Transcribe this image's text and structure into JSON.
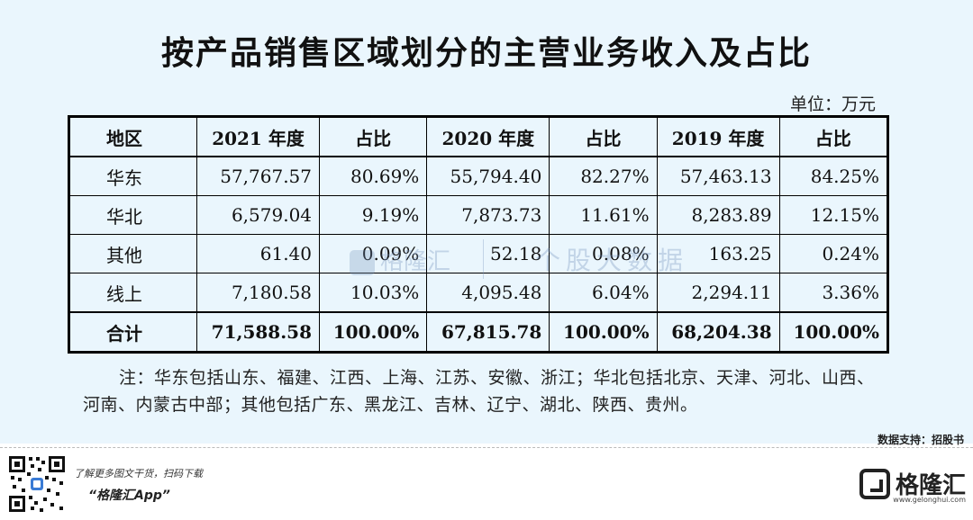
{
  "title": "按产品销售区域划分的主营业务收入及占比",
  "unit_label": "单位：万元",
  "table": {
    "headers": [
      "地区",
      "2021 年度",
      "占比",
      "2020 年度",
      "占比",
      "2019 年度",
      "占比"
    ],
    "rows": [
      [
        "华东",
        "57,767.57",
        "80.69%",
        "55,794.40",
        "82.27%",
        "57,463.13",
        "84.25%"
      ],
      [
        "华北",
        "6,579.04",
        "9.19%",
        "7,873.73",
        "11.61%",
        "8,283.89",
        "12.15%"
      ],
      [
        "其他",
        "61.40",
        "0.09%",
        "52.18",
        "0.08%",
        "163.25",
        "0.24%"
      ],
      [
        "线上",
        "7,180.58",
        "10.03%",
        "4,095.48",
        "6.04%",
        "2,294.11",
        "3.36%"
      ]
    ],
    "total": [
      "合计",
      "71,588.58",
      "100.00%",
      "67,815.78",
      "100.00%",
      "68,204.38",
      "100.00%"
    ]
  },
  "note": "注：华东包括山东、福建、江西、上海、江苏、安徽、浙江；华北包括北京、天津、河北、山西、河南、内蒙古中部；其他包括广东、黑龙江、吉林、辽宁、湖北、陕西、贵州。",
  "source": "数据支持：招股书",
  "watermark": {
    "brand": "格隆汇",
    "sub": "个股大数据"
  },
  "footer": {
    "promo_line1": "了解更多图文干货，扫码下载",
    "promo_line2": "“格隆汇App”",
    "brand_name": "格隆汇",
    "brand_domain": "www.gelonghui.com"
  }
}
